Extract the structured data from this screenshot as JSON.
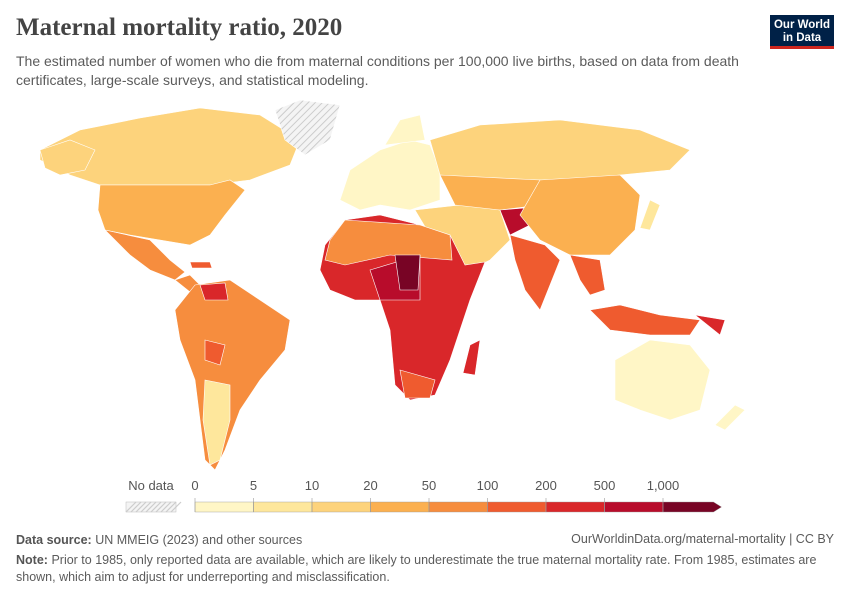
{
  "chart_data": {
    "type": "map",
    "title": "Maternal mortality ratio, 2020",
    "subtitle": "The estimated number of women who die from maternal conditions per 100,000 live births, based on data from death certificates, large-scale surveys, and statistical modeling.",
    "logo": "Our World in Data",
    "legend": {
      "no_data_label": "No data",
      "ticks": [
        0,
        5,
        10,
        20,
        50,
        100,
        200,
        500,
        {
          "value": 1000,
          "label": "1,000"
        }
      ],
      "colors": [
        "#fff6c6",
        "#fee79c",
        "#fdd37c",
        "#fbb050",
        "#f68d3e",
        "#ef5b2f",
        "#d9272a",
        "#b80c2b",
        "#780425"
      ]
    },
    "source_label": "Data source:",
    "source": "UN MMEIG (2023) and other sources",
    "url": "OurWorldinData.org/maternal-mortality | CC BY",
    "note_label": "Note:",
    "note": "Prior to 1985, only reported data are available, which are likely to underestimate the true maternal mortality rate. From 1985, estimates are shown, which aim to adjust for underreporting and misclassification."
  }
}
